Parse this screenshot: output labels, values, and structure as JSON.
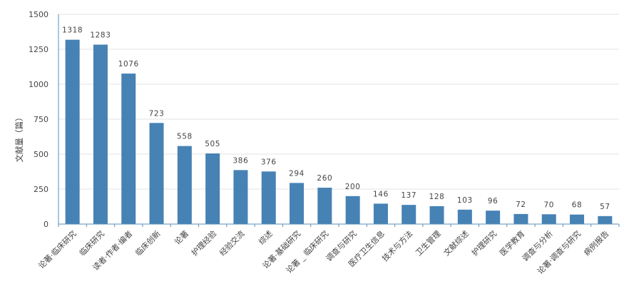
{
  "chart_data": {
    "type": "bar",
    "ylabel": "文献量（篇）",
    "xlabel": "",
    "ylim": [
      0,
      1500
    ],
    "yticks": [
      0,
      250,
      500,
      750,
      1000,
      1250,
      1500
    ],
    "grid": true,
    "bar_color": "#4682b4",
    "categories": [
      "论著·临床研究",
      "临床研究",
      "读者·作者·编者",
      "临床创新",
      "论著",
      "护理经验",
      "经验交流",
      "综述",
      "论著·基础研究",
      "论著 _ 临床研究",
      "调查与研究",
      "医疗卫生信息",
      "技术与方法",
      "卫生管理",
      "文献综述",
      "护理研究",
      "医学教育",
      "调查与分析",
      "论著·调查与研究",
      "病例报告"
    ],
    "values": [
      1318,
      1283,
      1076,
      723,
      558,
      505,
      386,
      376,
      294,
      260,
      200,
      146,
      137,
      128,
      103,
      96,
      72,
      70,
      68,
      57
    ]
  }
}
